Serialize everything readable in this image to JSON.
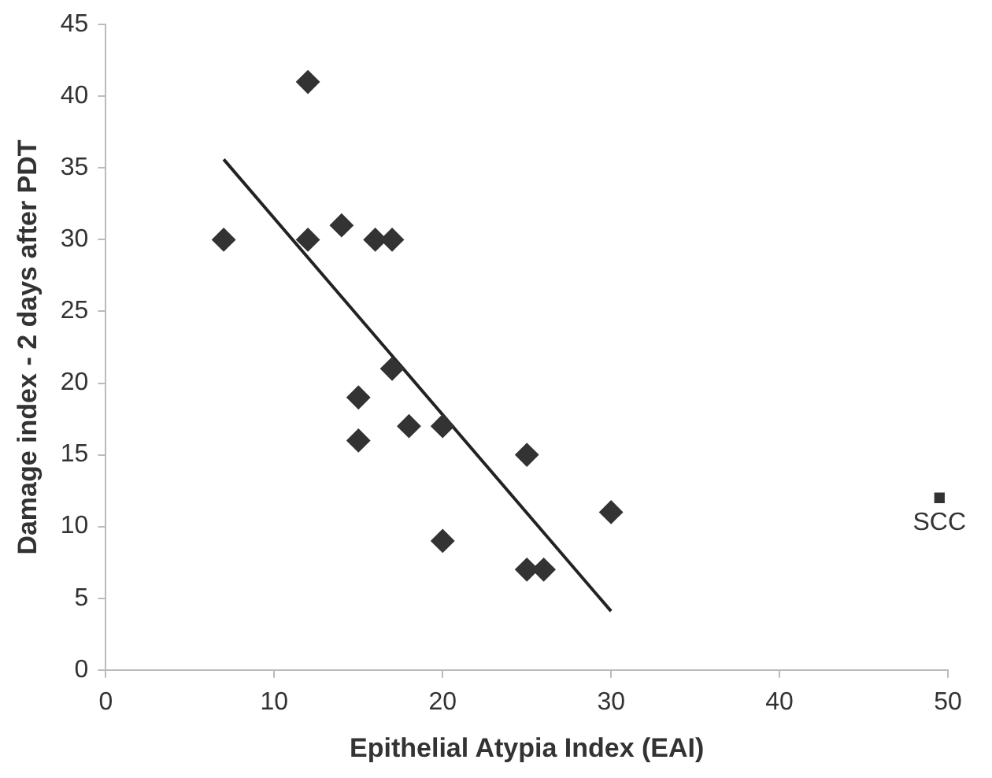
{
  "chart_data": {
    "type": "scatter",
    "xlabel": "Epithelial Atypia Index (EAI)",
    "ylabel": "Damage index - 2 days after PDT",
    "xlim": [
      0,
      50
    ],
    "xticks": [
      0,
      10,
      20,
      30,
      40,
      50
    ],
    "ylim": [
      0,
      45
    ],
    "yticks": [
      0,
      5,
      10,
      15,
      20,
      25,
      30,
      35,
      40,
      45
    ],
    "grid": false,
    "legend": false,
    "series": [
      {
        "marker": "diamond",
        "color": "#333333",
        "x": [
          7,
          12,
          12,
          14,
          16,
          17,
          17,
          15,
          15,
          18,
          20,
          25,
          20,
          30,
          25,
          26
        ],
        "values": [
          30,
          41,
          30,
          31,
          30,
          30,
          21,
          19,
          16,
          17,
          17,
          15,
          9,
          11,
          7,
          7
        ]
      },
      {
        "type": "line",
        "marker": "none",
        "color": "#222222",
        "x": [
          7,
          30
        ],
        "values": [
          35.6,
          4.1
        ]
      },
      {
        "marker": "square",
        "name": "SCC",
        "color": "#333333",
        "x": [
          49.5
        ],
        "values": [
          12
        ]
      }
    ]
  }
}
